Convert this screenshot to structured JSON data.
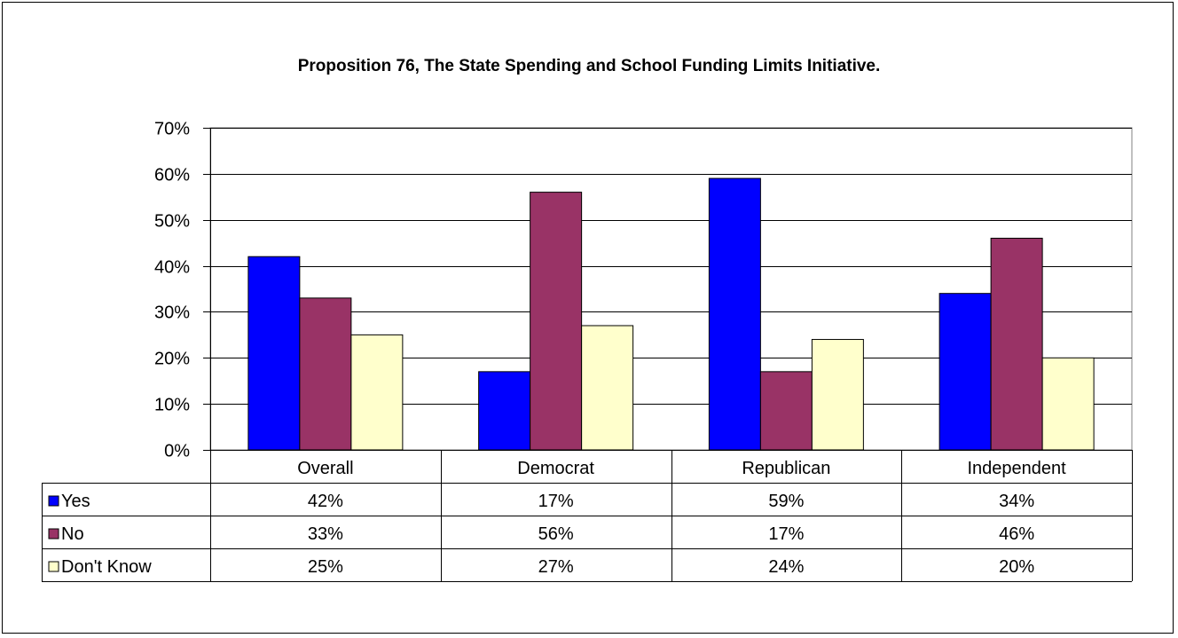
{
  "chart_data": {
    "type": "bar",
    "title": "Proposition 76,  The State Spending and School Funding Limits Initiative.",
    "categories": [
      "Overall",
      "Democrat",
      "Republican",
      "Independent"
    ],
    "series": [
      {
        "name": "Yes",
        "color": "#0000ff",
        "values": [
          42,
          17,
          59,
          34
        ],
        "labels": [
          "42%",
          "17%",
          "59%",
          "34%"
        ]
      },
      {
        "name": "No",
        "color": "#993366",
        "values": [
          33,
          56,
          17,
          46
        ],
        "labels": [
          "33%",
          "56%",
          "17%",
          "46%"
        ]
      },
      {
        "name": "Don't Know",
        "color": "#ffffcc",
        "values": [
          25,
          27,
          24,
          20
        ],
        "labels": [
          "25%",
          "27%",
          "24%",
          "20%"
        ]
      }
    ],
    "y_ticks": [
      "0%",
      "10%",
      "20%",
      "30%",
      "40%",
      "50%",
      "60%",
      "70%"
    ],
    "ylim": [
      0,
      70
    ],
    "grid": true,
    "legend": "data table"
  }
}
